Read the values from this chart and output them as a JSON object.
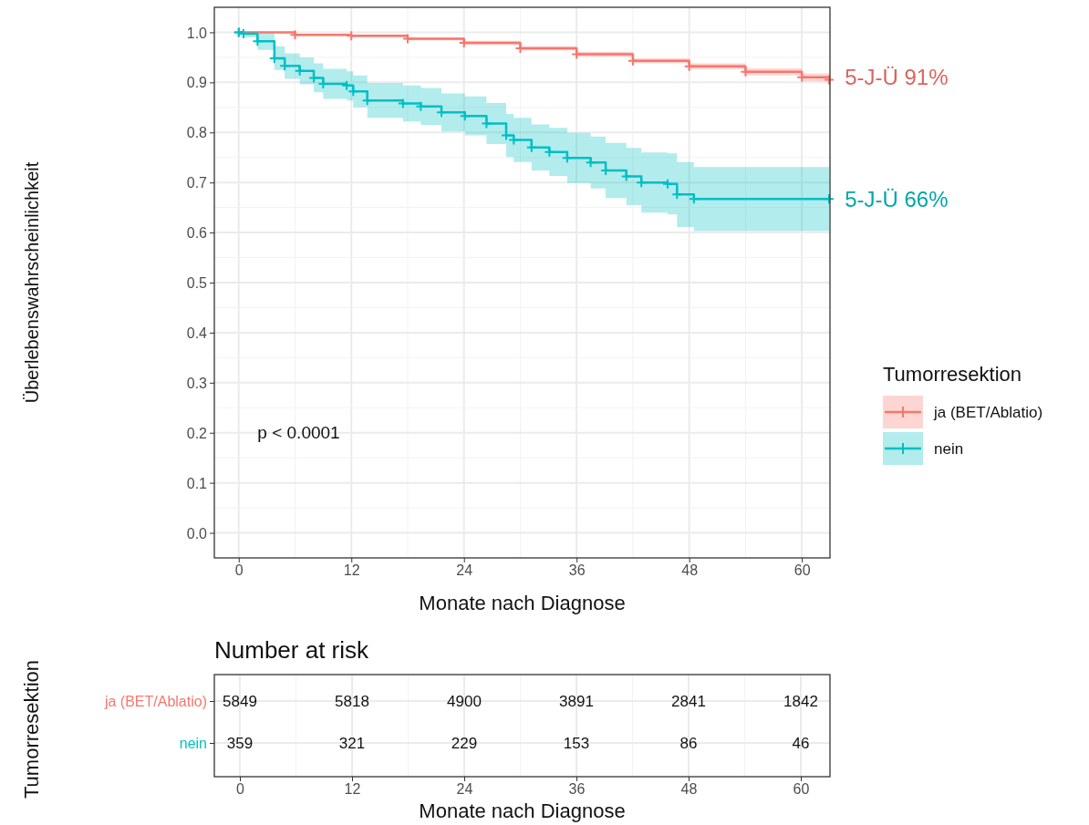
{
  "chart_data": [
    {
      "type": "step",
      "xlabel": "Monate nach Diagnose",
      "ylabel": "Überlebenswahrscheinlichkeit",
      "legend_title": "Tumorresektion",
      "legend": "right",
      "grid": true,
      "marker": "cross",
      "xlim": [
        -2.6,
        63
      ],
      "ylim": [
        -0.05,
        1.05
      ],
      "xticks": [
        0,
        12,
        24,
        36,
        48,
        60
      ],
      "yticks": [
        {
          "value": 0,
          "label": "0.0"
        },
        0.1,
        0.2,
        0.3,
        0.4,
        0.5,
        0.6,
        0.7,
        0.8,
        0.9,
        {
          "value": 1,
          "label": "1.0"
        }
      ],
      "annotations": [
        "p < 0.0001",
        {
          "text": "5-J-Ü 91%",
          "x": 60,
          "y": 0.91
        },
        {
          "text": "5-J-Ü 66%",
          "x": 60,
          "y": 0.667
        }
      ],
      "series": [
        {
          "name": "ja (BET/Ablatio)",
          "color": "#f8766d",
          "x": [
            0,
            6,
            12,
            18,
            24,
            30,
            36,
            42,
            48,
            54,
            60,
            62.9
          ],
          "values": [
            1,
            0.995,
            0.993,
            0.987,
            0.979,
            0.968,
            0.956,
            0.943,
            0.932,
            0.921,
            0.91,
            0.905
          ],
          "lower": [
            1,
            0.993,
            0.99,
            0.984,
            0.975,
            0.964,
            0.951,
            0.938,
            0.926,
            0.914,
            0.902,
            0.897
          ],
          "upper": [
            1,
            0.997,
            0.996,
            0.99,
            0.983,
            0.972,
            0.961,
            0.948,
            0.938,
            0.928,
            0.918,
            0.913
          ]
        },
        {
          "name": "nein",
          "color": "#00bfc4",
          "x": [
            0,
            0.5,
            2,
            3.8,
            4.9,
            6.5,
            8,
            9,
            11.5,
            12.2,
            13.7,
            17.5,
            19.4,
            21.6,
            24.1,
            26.4,
            28.5,
            29.3,
            31.2,
            33.1,
            35,
            37.5,
            39.1,
            41.3,
            42.9,
            45.7,
            46.7,
            48.5,
            62.9
          ],
          "values": [
            1,
            0.997,
            0.982,
            0.948,
            0.933,
            0.923,
            0.909,
            0.897,
            0.894,
            0.882,
            0.864,
            0.858,
            0.852,
            0.84,
            0.833,
            0.818,
            0.794,
            0.785,
            0.77,
            0.761,
            0.749,
            0.74,
            0.724,
            0.712,
            0.7,
            0.697,
            0.676,
            0.667,
            0.667
          ],
          "lower": [
            1,
            0.99,
            0.965,
            0.925,
            0.907,
            0.896,
            0.88,
            0.867,
            0.864,
            0.85,
            0.829,
            0.822,
            0.815,
            0.802,
            0.794,
            0.777,
            0.751,
            0.741,
            0.724,
            0.713,
            0.699,
            0.688,
            0.669,
            0.655,
            0.64,
            0.636,
            0.611,
            0.603,
            0.603
          ],
          "upper": [
            1,
            1,
            0.998,
            0.972,
            0.958,
            0.95,
            0.938,
            0.927,
            0.922,
            0.914,
            0.899,
            0.894,
            0.889,
            0.878,
            0.872,
            0.859,
            0.837,
            0.829,
            0.816,
            0.809,
            0.799,
            0.792,
            0.779,
            0.769,
            0.76,
            0.758,
            0.741,
            0.731,
            0.731
          ]
        }
      ]
    },
    {
      "type": "heatmap",
      "title": "Number at risk",
      "xlabel": "Monate nach Diagnose",
      "ylabel": "Tumorresektion",
      "grid": true,
      "data_labels": true,
      "categories": [
        "0",
        "12",
        "24",
        "36",
        "48",
        "60"
      ],
      "y_categories": [
        "ja (BET/Ablatio)",
        "nein"
      ],
      "cells": [
        [
          5849,
          5818,
          4900,
          3891,
          2841,
          1842
        ],
        [
          359,
          321,
          229,
          153,
          86,
          46
        ]
      ]
    }
  ]
}
